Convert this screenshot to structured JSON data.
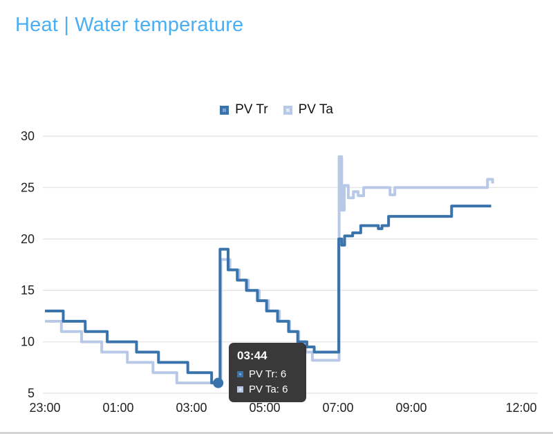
{
  "header": {
    "title": "Heat | Water temperature",
    "title_color": "#49aff2"
  },
  "legend": {
    "items": [
      {
        "label": "PV Tr",
        "stroke": "#3973ac",
        "fill": "#7aa4d1"
      },
      {
        "label": "PV Ta",
        "stroke": "#b7c9e6",
        "fill": "#e2eaf6"
      }
    ]
  },
  "tooltip": {
    "title": "03:44",
    "rows": [
      {
        "label": "PV Tr: 6",
        "stroke": "#3973ac",
        "fill": "#7aa4d1"
      },
      {
        "label": "PV Ta: 6",
        "stroke": "#b7c9e6",
        "fill": "#e2eaf6"
      }
    ]
  },
  "chart_data": {
    "type": "line",
    "step": "after",
    "title": "Heat | Water temperature",
    "xlabel": "",
    "ylabel": "",
    "x_unit": "hours_after_23:00",
    "y_range": [
      5,
      30
    ],
    "y_ticks": [
      5,
      10,
      15,
      20,
      25,
      30
    ],
    "x_ticks": [
      {
        "t": 0,
        "label": "23:00"
      },
      {
        "t": 2,
        "label": "01:00"
      },
      {
        "t": 4,
        "label": "03:00"
      },
      {
        "t": 6,
        "label": "05:00"
      },
      {
        "t": 8,
        "label": "07:00"
      },
      {
        "t": 10,
        "label": "09:00"
      },
      {
        "t": 13,
        "label": "12:00"
      }
    ],
    "grid": "horizontal",
    "legend_position": "top",
    "series": [
      {
        "name": "PV Tr",
        "color": "#3973ac",
        "points": [
          [
            0,
            13
          ],
          [
            0.5,
            12
          ],
          [
            1.1,
            11
          ],
          [
            1.7,
            10
          ],
          [
            2.5,
            9
          ],
          [
            3.1,
            8
          ],
          [
            3.9,
            7
          ],
          [
            4.55,
            6
          ],
          [
            4.78,
            19
          ],
          [
            5.0,
            17
          ],
          [
            5.25,
            16
          ],
          [
            5.5,
            15
          ],
          [
            5.8,
            14
          ],
          [
            6.05,
            13
          ],
          [
            6.35,
            12
          ],
          [
            6.65,
            11
          ],
          [
            6.9,
            10
          ],
          [
            7.15,
            9.5
          ],
          [
            7.35,
            9
          ],
          [
            8.02,
            20
          ],
          [
            8.1,
            19.4
          ],
          [
            8.18,
            20.3
          ],
          [
            8.4,
            20.6
          ],
          [
            8.62,
            21.3
          ],
          [
            9.1,
            21
          ],
          [
            9.2,
            21.3
          ],
          [
            9.38,
            22.2
          ],
          [
            11.1,
            23.2
          ],
          [
            12.18,
            23.2
          ]
        ]
      },
      {
        "name": "PV Ta",
        "color": "#b7c9e6",
        "points": [
          [
            0,
            12
          ],
          [
            0.45,
            11
          ],
          [
            1.0,
            10
          ],
          [
            1.55,
            9
          ],
          [
            2.25,
            8
          ],
          [
            2.95,
            7
          ],
          [
            3.6,
            6
          ],
          [
            4.8,
            18
          ],
          [
            5.05,
            17
          ],
          [
            5.3,
            16
          ],
          [
            5.55,
            15
          ],
          [
            5.85,
            14
          ],
          [
            6.1,
            13
          ],
          [
            6.4,
            12
          ],
          [
            6.68,
            11
          ],
          [
            6.93,
            10
          ],
          [
            7.12,
            9
          ],
          [
            7.3,
            8.2
          ],
          [
            8.03,
            28
          ],
          [
            8.1,
            22.8
          ],
          [
            8.17,
            25.2
          ],
          [
            8.28,
            24
          ],
          [
            8.42,
            24.6
          ],
          [
            8.55,
            24.2
          ],
          [
            8.7,
            25
          ],
          [
            9.42,
            24.3
          ],
          [
            9.55,
            25
          ],
          [
            12.0,
            25
          ],
          [
            12.08,
            25.8
          ],
          [
            12.22,
            25.4
          ]
        ]
      }
    ],
    "marker": {
      "series": "PV Tr",
      "t": 4.73,
      "value": 6,
      "color": "#3973ac"
    }
  }
}
